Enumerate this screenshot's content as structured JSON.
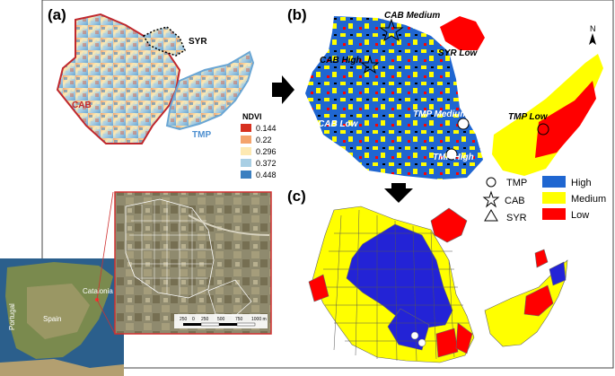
{
  "panels": {
    "a": "(a)",
    "b": "(b)",
    "c": "(c)"
  },
  "panel_a": {
    "labels": {
      "syr": "SYR",
      "cab": "CAB",
      "tmp": "TMP"
    },
    "legend": {
      "title": "NDVI",
      "items": [
        {
          "value": "0.144",
          "color": "#d7301f"
        },
        {
          "value": "0.22",
          "color": "#f4a36b"
        },
        {
          "value": "0.296",
          "color": "#fde9b2"
        },
        {
          "value": "0.372",
          "color": "#a9cfe4"
        },
        {
          "value": "0.448",
          "color": "#3b7fc0"
        }
      ]
    }
  },
  "panel_b": {
    "labels": {
      "cab_medium": "CAB Medium",
      "cab_high": "CAB High",
      "syr_low": "SYR Low",
      "cab_low": "CAB Low",
      "tmp_medium": "TMP Medium",
      "tmp_high": "TMP High",
      "tmp_low": "TMP Low"
    },
    "north": "N"
  },
  "key": {
    "symbols": [
      {
        "shape": "circle",
        "label": "TMP"
      },
      {
        "shape": "star",
        "label": "CAB"
      },
      {
        "shape": "triangle",
        "label": "SYR"
      }
    ],
    "classes": [
      {
        "label": "High",
        "color": "#1f66d1"
      },
      {
        "label": "Medium",
        "color": "#ffff00"
      },
      {
        "label": "Low",
        "color": "#ff0000"
      }
    ]
  },
  "location_map": {
    "countries": {
      "portugal": "Portugal",
      "spain": "Spain"
    },
    "region": "Catalonia"
  },
  "aerial": {
    "scale_ticks": [
      "250",
      "0",
      "250",
      "500",
      "750",
      "1000 m"
    ]
  }
}
